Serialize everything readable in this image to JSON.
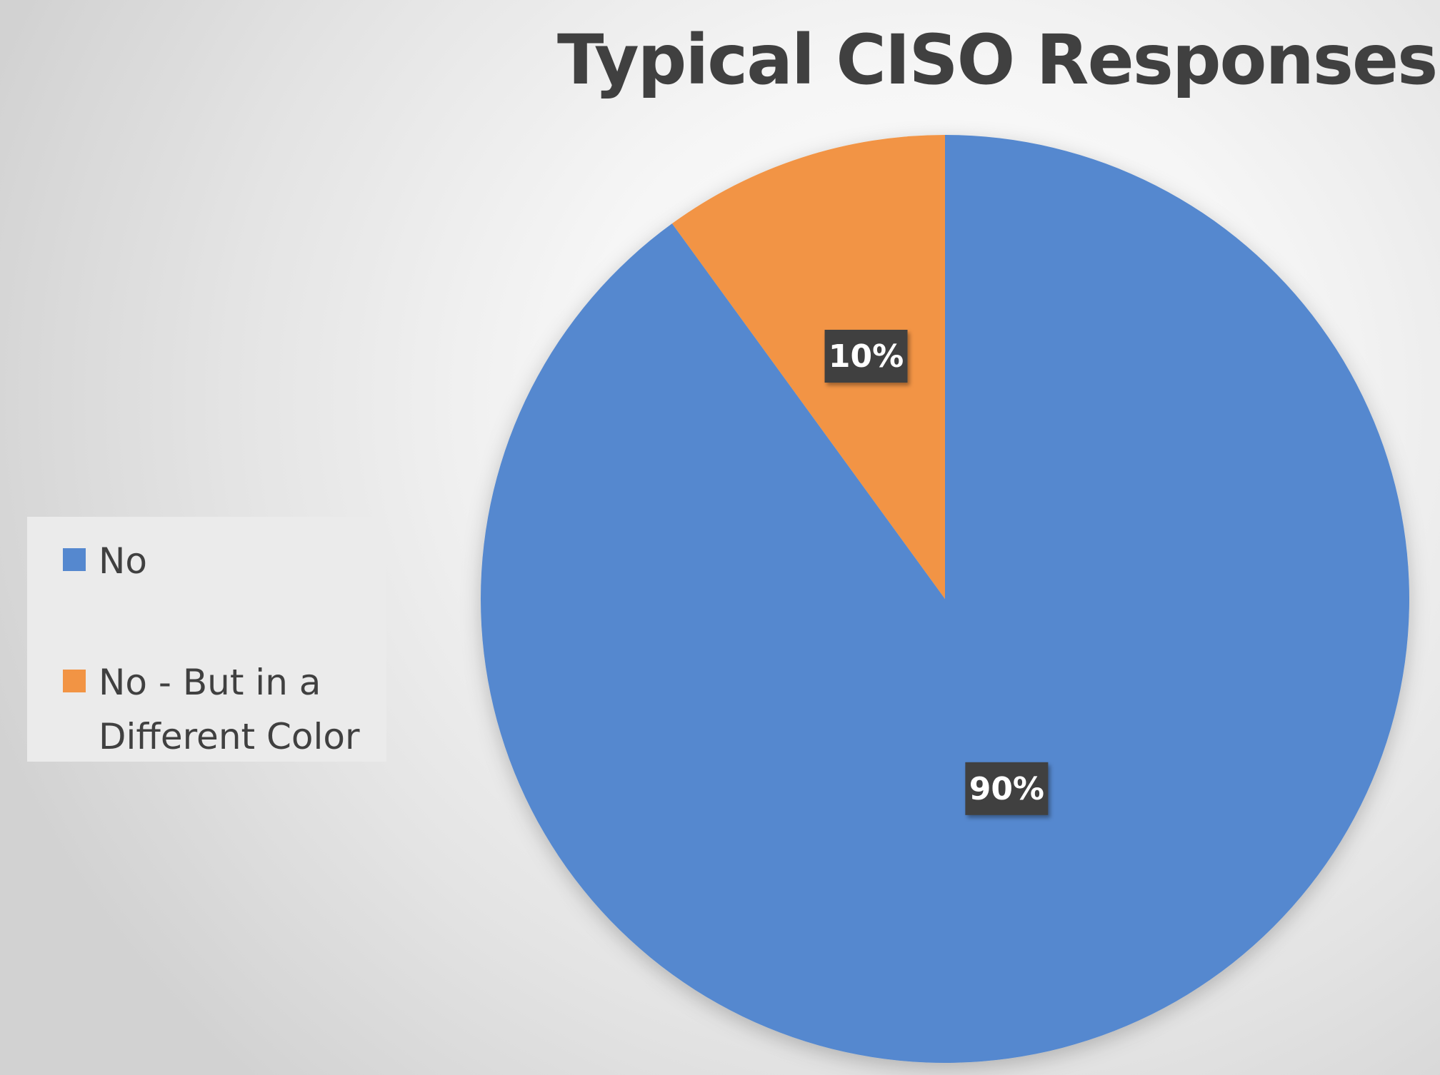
{
  "chart_data": {
    "type": "pie",
    "title": "Typical CISO Responses",
    "categories": [
      "No",
      "No - But in a Different Color"
    ],
    "values": [
      90,
      10
    ],
    "data_labels": [
      "90%",
      "10%"
    ],
    "colors": [
      "#5588cf",
      "#f29444"
    ],
    "legend_position": "left",
    "start_angle": "12 o'clock, counterclockwise"
  }
}
